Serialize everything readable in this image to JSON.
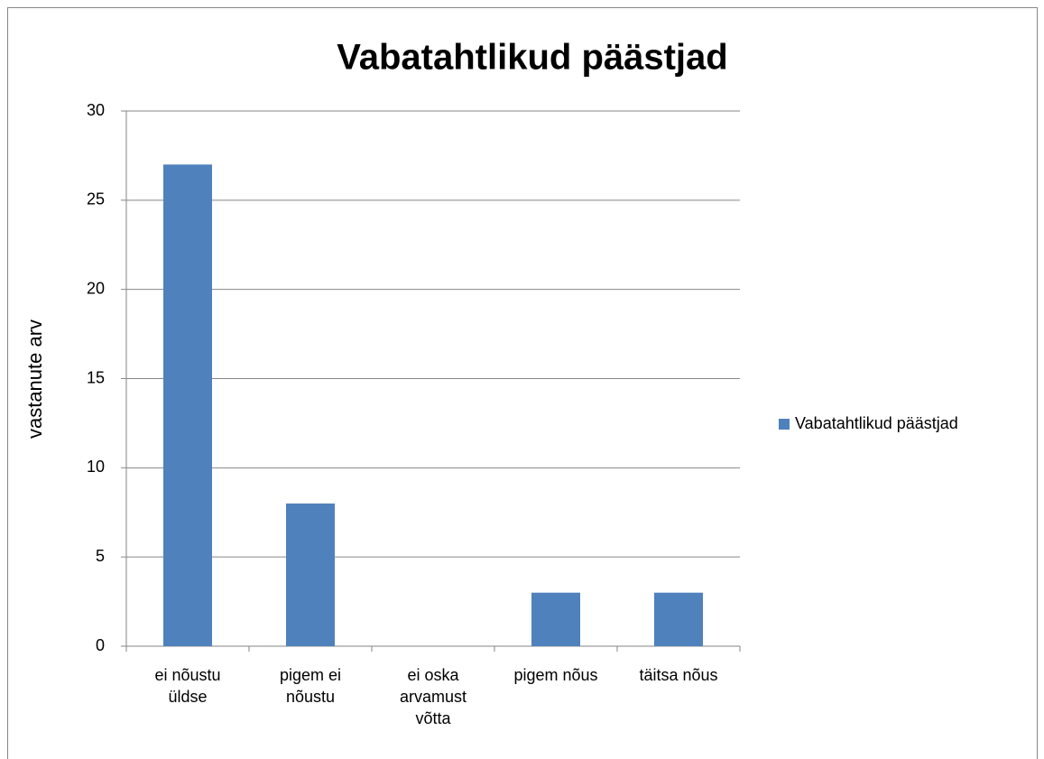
{
  "chart_data": {
    "type": "bar",
    "title": "Vabatahtlikud päästjad",
    "ylabel": "vastanute arv",
    "categories": [
      "ei nõustu üldse",
      "pigem ei nõustu",
      "ei oska arvamust võtta",
      "pigem nõus",
      "täitsa nõus"
    ],
    "series": [
      {
        "name": "Vabatahtlikud päästjad",
        "color": "#4f81bd",
        "values": [
          27,
          8,
          0,
          3,
          3
        ]
      }
    ],
    "ylim": [
      0,
      30
    ],
    "yticks": [
      0,
      5,
      10,
      15,
      20,
      25,
      30
    ],
    "grid": true,
    "legend": "right"
  }
}
